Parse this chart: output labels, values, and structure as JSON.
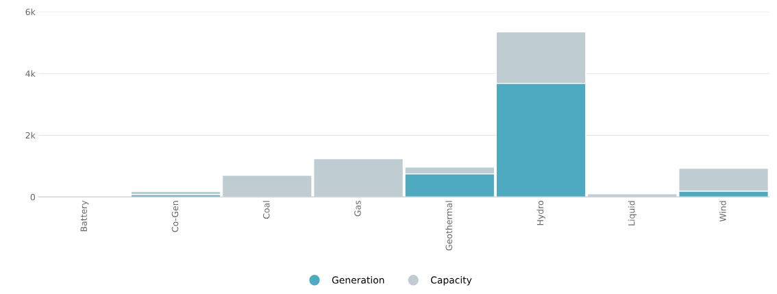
{
  "chart_data": {
    "type": "bar",
    "stacked": true,
    "categories": [
      "Battery",
      "Co-Gen",
      "Coal",
      "Gas",
      "Geothermal",
      "Hydro",
      "Liquid",
      "Wind"
    ],
    "series": [
      {
        "name": "Generation",
        "color": "#4eaac0",
        "values": [
          0,
          70,
          0,
          0,
          750,
          3680,
          0,
          190
        ]
      },
      {
        "name": "Capacity",
        "color": "#bfccd2",
        "values": [
          10,
          110,
          700,
          1240,
          220,
          1670,
          100,
          740
        ]
      }
    ],
    "ylim": [
      0,
      6000
    ],
    "yticks": [
      0,
      {
        "value": 2000,
        "label": "2k"
      },
      {
        "value": 4000,
        "label": "4k"
      },
      {
        "value": 6000,
        "label": "6k"
      }
    ],
    "grid": "y",
    "legend": "bottom"
  }
}
